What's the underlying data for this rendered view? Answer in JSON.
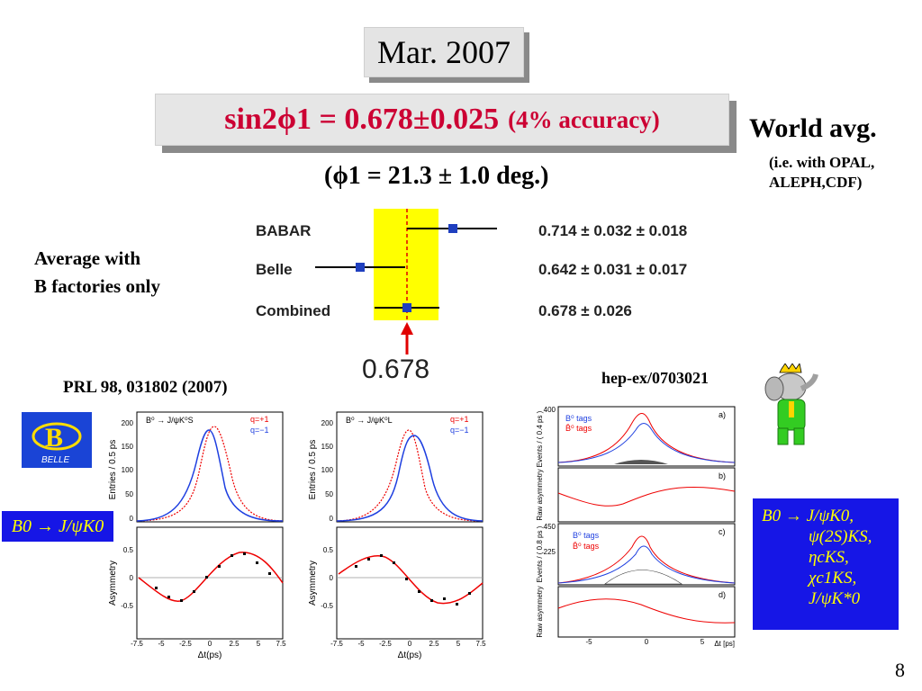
{
  "date_label": "Mar. 2007",
  "headline": {
    "main": "sin2ϕ1 = 0.678±0.025",
    "accuracy": "(4% accuracy)"
  },
  "phi_line": "(ϕ1 = 21.3 ± 1.0 deg.)",
  "world_avg": {
    "title": "World avg.",
    "note_line1": "(i.e. with OPAL,",
    "note_line2": "ALEPH,CDF)"
  },
  "average_note": {
    "line1": "Average with",
    "line2": "B factories only"
  },
  "forest": {
    "rows": [
      {
        "label": "BABAR",
        "value_text": "0.714 ± 0.032 ± 0.018",
        "value": 0.714
      },
      {
        "label": "Belle",
        "value_text": "0.642 ± 0.031 ± 0.017",
        "value": 0.642
      },
      {
        "label": "Combined",
        "value_text": "0.678 ± 0.026",
        "value": 0.678
      }
    ],
    "arrow_value": "0.678",
    "band_color": "#ffff00",
    "marker_color": "#1f3fbf"
  },
  "references": {
    "left": "PRL 98, 031802 (2007)",
    "right": "hep-ex/0703021"
  },
  "belle_logo_text": "BELLE",
  "left_mode": "B0 → J/ψK0",
  "modes": [
    "B0 → J/ψK0,",
    "ψ(2S)KS,",
    "ηcKS,",
    "χc1KS,",
    "J/ψK*0"
  ],
  "plot1": {
    "decay": "B⁰ → J/ψK⁰S",
    "legend": [
      "q=+1",
      "q=−1"
    ],
    "ylabel_top": "Entries / 0.5 ps",
    "ylabel_bottom": "Asymmetry",
    "xlabel": "Δt(ps)",
    "yticks_top": [
      "200",
      "150",
      "100",
      "50",
      "0"
    ],
    "yticks_bottom": [
      "0.5",
      "0",
      "-0.5"
    ],
    "xticks": [
      "-7.5",
      "-5",
      "-2.5",
      "0",
      "2.5",
      "5",
      "7.5"
    ]
  },
  "plot2": {
    "decay": "B⁰ → J/ψK⁰L",
    "legend": [
      "q=+1",
      "q=−1"
    ],
    "ylabel_top": "Entries / 0.5 ps",
    "ylabel_bottom": "Asymmetry",
    "xlabel": "Δt(ps)",
    "yticks_top": [
      "200",
      "150",
      "100",
      "50",
      "0"
    ],
    "yticks_bottom": [
      "0.5",
      "0",
      "-0.5"
    ],
    "xticks": [
      "-7.5",
      "-5",
      "-2.5",
      "0",
      "2.5",
      "5",
      "7.5"
    ]
  },
  "plot3": {
    "legend": [
      "B⁰ tags",
      "B̄⁰ tags"
    ],
    "panel_labels": [
      "a)",
      "b)",
      "c)",
      "d)"
    ],
    "yticks": [
      "400",
      "450",
      "225"
    ],
    "xlabel": "Δt [ps]",
    "ylabels": [
      "Events / ( 0.4 ps )",
      "Raw asymmetry",
      "Events / ( 0.8 ps )",
      "Raw asymmetry"
    ],
    "xticks": [
      "-5",
      "0",
      "5"
    ]
  },
  "page_number": "8"
}
